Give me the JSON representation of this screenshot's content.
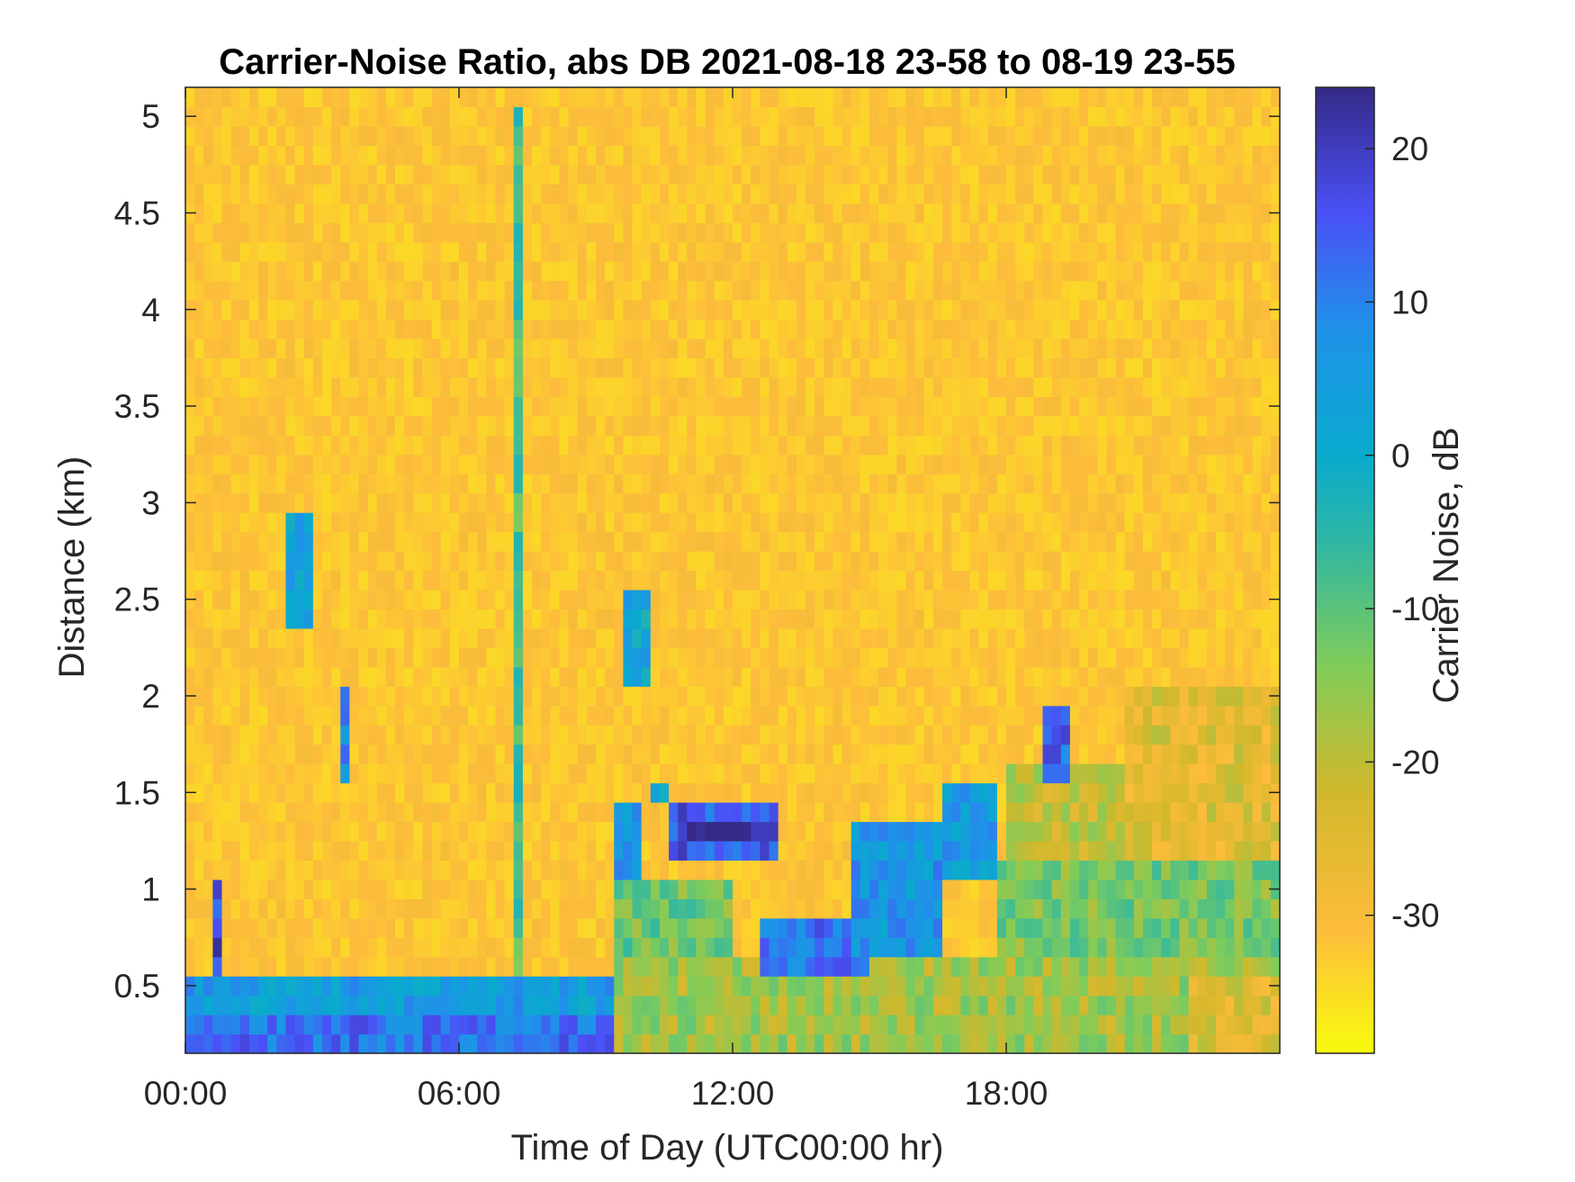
{
  "chart_data": {
    "type": "heatmap",
    "title": "Carrier-Noise Ratio, abs DB 2021-08-18 23-58 to 08-19 23-55",
    "xlabel": "Time of Day (UTC00:00 hr)",
    "ylabel": "Distance (km)",
    "xlim": [
      0,
      24
    ],
    "ylim": [
      0.15,
      5.15
    ],
    "x_ticks": [
      0,
      6,
      12,
      18
    ],
    "x_tick_labels": [
      "00:00",
      "06:00",
      "12:00",
      "18:00"
    ],
    "y_ticks": [
      0.5,
      1,
      1.5,
      2,
      2.5,
      3,
      3.5,
      4,
      4.5,
      5
    ],
    "y_tick_labels": [
      "0.5",
      "1",
      "1.5",
      "2",
      "2.5",
      "3",
      "3.5",
      "4",
      "4.5",
      "5"
    ],
    "colorbar": {
      "label": "Carrier Noise, dB",
      "range": [
        -39,
        24
      ],
      "ticks": [
        -30,
        -20,
        -10,
        0,
        10,
        20
      ],
      "tick_labels": [
        "-30",
        "-20",
        "-10",
        "0",
        "10",
        "20"
      ],
      "colormap": "parula"
    },
    "time_resolution_hr": 0.2,
    "range_gate_km": 0.1,
    "background_db": -32,
    "regions": [
      {
        "t": [
          0,
          9.3
        ],
        "d": [
          0.15,
          0.35
        ],
        "db": 12
      },
      {
        "t": [
          0,
          9.3
        ],
        "d": [
          0.35,
          0.5
        ],
        "db": 5
      },
      {
        "t": [
          0,
          6.5
        ],
        "d": [
          0.5,
          0.6
        ],
        "db": -2
      },
      {
        "t": [
          0.7,
          0.9
        ],
        "d": [
          0.6,
          1.05
        ],
        "db": 18
      },
      {
        "t": [
          2.2,
          2.9
        ],
        "d": [
          2.35,
          3.0
        ],
        "db": 3
      },
      {
        "t": [
          3.5,
          3.7
        ],
        "d": [
          1.6,
          2.1
        ],
        "db": 10
      },
      {
        "t": [
          9.3,
          24
        ],
        "d": [
          0.15,
          0.7
        ],
        "db": -17
      },
      {
        "t": [
          9.3,
          12
        ],
        "d": [
          0.7,
          1.05
        ],
        "db": -12
      },
      {
        "t": [
          9.3,
          10
        ],
        "d": [
          1.05,
          1.45
        ],
        "db": 5
      },
      {
        "t": [
          10.1,
          10.5
        ],
        "d": [
          1.45,
          1.55
        ],
        "db": 0
      },
      {
        "t": [
          9.5,
          10.1
        ],
        "d": [
          2.1,
          2.55
        ],
        "db": 2
      },
      {
        "t": [
          10.5,
          13.0
        ],
        "d": [
          1.15,
          1.45
        ],
        "db": 15
      },
      {
        "t": [
          11.0,
          12.7
        ],
        "d": [
          1.25,
          1.35
        ],
        "db": 22
      },
      {
        "t": [
          12.5,
          15.0
        ],
        "d": [
          0.5,
          0.8
        ],
        "db": 12
      },
      {
        "t": [
          14.5,
          16.5
        ],
        "d": [
          0.7,
          1.35
        ],
        "db": 6
      },
      {
        "t": [
          16.5,
          17.7
        ],
        "d": [
          1.05,
          1.6
        ],
        "db": 5
      },
      {
        "t": [
          17.7,
          24
        ],
        "d": [
          0.7,
          1.1
        ],
        "db": -13
      },
      {
        "t": [
          18.0,
          20.5
        ],
        "d": [
          1.1,
          1.7
        ],
        "db": -20
      },
      {
        "t": [
          18.7,
          19.4
        ],
        "d": [
          1.6,
          2.0
        ],
        "db": 13
      },
      {
        "t": [
          20.5,
          24
        ],
        "d": [
          1.1,
          2.1
        ],
        "db": -25
      },
      {
        "t": [
          22.0,
          24
        ],
        "d": [
          0.15,
          0.55
        ],
        "db": -25
      }
    ],
    "spikes": [
      {
        "t": 7.35,
        "d": [
          0.5,
          5.05
        ],
        "db": -8
      }
    ]
  }
}
